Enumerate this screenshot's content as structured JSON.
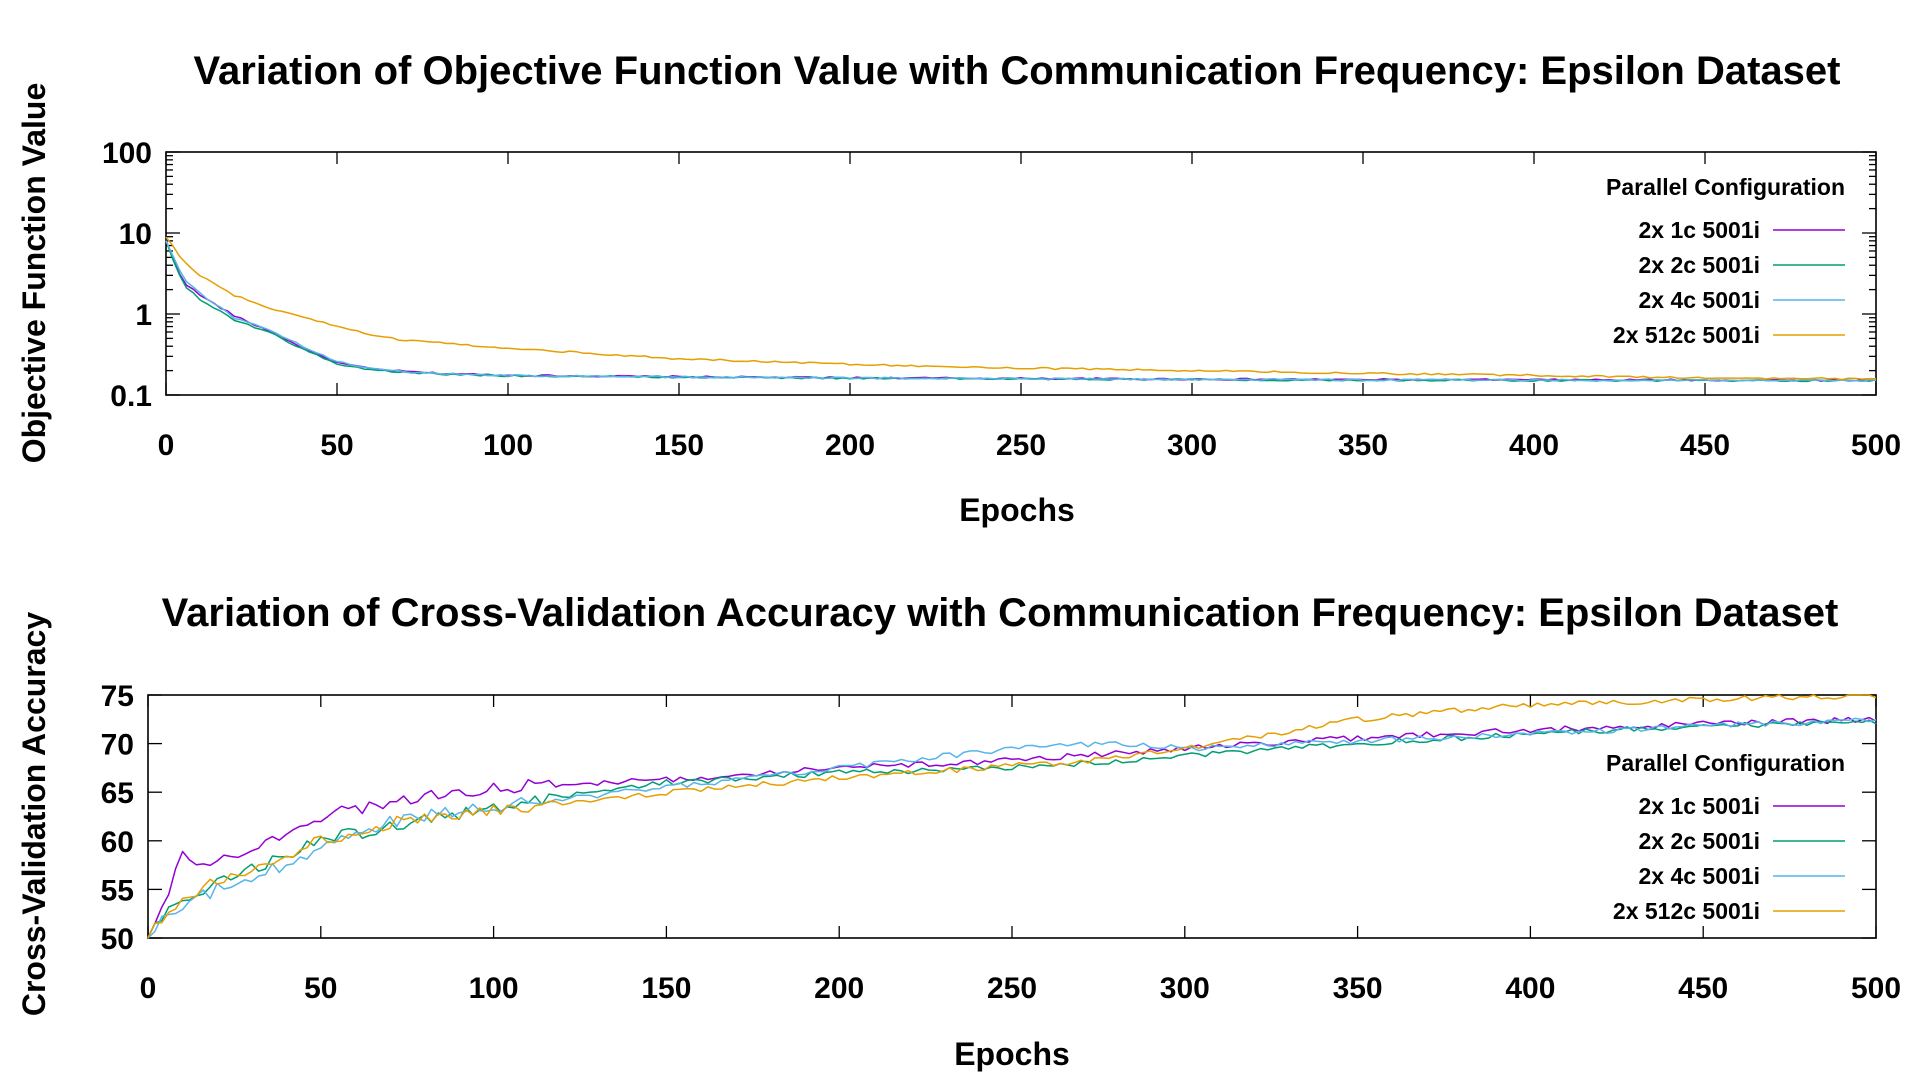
{
  "chart_data": [
    {
      "type": "line",
      "title": "Variation of Objective Function Value with Communication Frequency: Epsilon Dataset",
      "xlabel": "Epochs",
      "ylabel": "Objective Function Value",
      "xlim": [
        0,
        500
      ],
      "ylim": [
        0.1,
        100
      ],
      "yscale": "log",
      "grid": false,
      "legend_placement": "top-right",
      "legend_title": "Parallel Configuration",
      "x_ticks": [
        "0",
        "50",
        "100",
        "150",
        "200",
        "250",
        "300",
        "350",
        "400",
        "450",
        "500"
      ],
      "y_ticks": [
        "0.1",
        "1",
        "10",
        "100"
      ],
      "x": [
        0,
        5,
        10,
        20,
        30,
        40,
        50,
        60,
        70,
        80,
        100,
        150,
        200,
        250,
        300,
        350,
        400,
        450,
        500
      ],
      "series": [
        {
          "name": "2x 1c 5001i",
          "color": "#9400d3",
          "values": [
            8,
            2.5,
            1.7,
            0.95,
            0.62,
            0.38,
            0.25,
            0.21,
            0.195,
            0.185,
            0.175,
            0.168,
            0.163,
            0.16,
            0.157,
            0.155,
            0.154,
            0.153,
            0.152
          ]
        },
        {
          "name": "2x 2c 5001i",
          "color": "#009e73",
          "values": [
            8,
            2.3,
            1.5,
            0.85,
            0.6,
            0.37,
            0.24,
            0.205,
            0.19,
            0.182,
            0.173,
            0.166,
            0.161,
            0.158,
            0.155,
            0.153,
            0.152,
            0.151,
            0.15
          ]
        },
        {
          "name": "2x 4c 5001i",
          "color": "#56b4e9",
          "values": [
            8,
            2.8,
            1.8,
            0.9,
            0.63,
            0.4,
            0.26,
            0.21,
            0.193,
            0.184,
            0.174,
            0.167,
            0.162,
            0.159,
            0.156,
            0.154,
            0.153,
            0.152,
            0.151
          ]
        },
        {
          "name": "2x 512c 5001i",
          "color": "#e69f00",
          "values": [
            9,
            4.5,
            3.0,
            1.7,
            1.2,
            0.9,
            0.72,
            0.55,
            0.47,
            0.44,
            0.38,
            0.28,
            0.24,
            0.215,
            0.2,
            0.185,
            0.175,
            0.162,
            0.158
          ]
        }
      ]
    },
    {
      "type": "line",
      "title": "Variation of Cross-Validation Accuracy with Communication Frequency: Epsilon Dataset",
      "xlabel": "Epochs",
      "ylabel": "Cross-Validation Accuracy",
      "xlim": [
        0,
        500
      ],
      "ylim": [
        50,
        75
      ],
      "yscale": "linear",
      "grid": false,
      "legend_placement": "right",
      "legend_title": "Parallel Configuration",
      "x_ticks": [
        "0",
        "50",
        "100",
        "150",
        "200",
        "250",
        "300",
        "350",
        "400",
        "450",
        "500"
      ],
      "y_ticks": [
        "50",
        "55",
        "60",
        "65",
        "70",
        "75"
      ],
      "x": [
        0,
        5,
        10,
        20,
        30,
        40,
        50,
        70,
        100,
        150,
        200,
        250,
        280,
        300,
        350,
        400,
        450,
        500
      ],
      "series": [
        {
          "name": "2x 1c 5001i",
          "color": "#9400d3",
          "values": [
            50,
            54,
            58.3,
            57.5,
            59.5,
            61,
            62.5,
            64,
            65.5,
            66.3,
            67.5,
            68.3,
            69,
            69.5,
            70.6,
            71.4,
            72,
            72.5
          ]
        },
        {
          "name": "2x 2c 5001i",
          "color": "#009e73",
          "values": [
            50,
            52.5,
            54,
            55.5,
            57,
            58.5,
            60,
            61.5,
            63.5,
            66,
            67,
            67.5,
            68.2,
            68.7,
            70,
            71,
            71.8,
            72.3
          ]
        },
        {
          "name": "2x 4c 5001i",
          "color": "#56b4e9",
          "values": [
            50,
            52,
            53.5,
            55,
            56.3,
            57.5,
            59.5,
            62,
            63.5,
            65.5,
            67.5,
            69.5,
            70,
            69.5,
            70.3,
            71,
            71.8,
            72.4
          ]
        },
        {
          "name": "2x 512c 5001i",
          "color": "#e69f00",
          "values": [
            50,
            52.5,
            54,
            55.8,
            57.2,
            58.5,
            60,
            61.8,
            63.2,
            65,
            66.5,
            67.7,
            68.5,
            69.5,
            72.5,
            74,
            74.5,
            75
          ]
        }
      ]
    }
  ]
}
